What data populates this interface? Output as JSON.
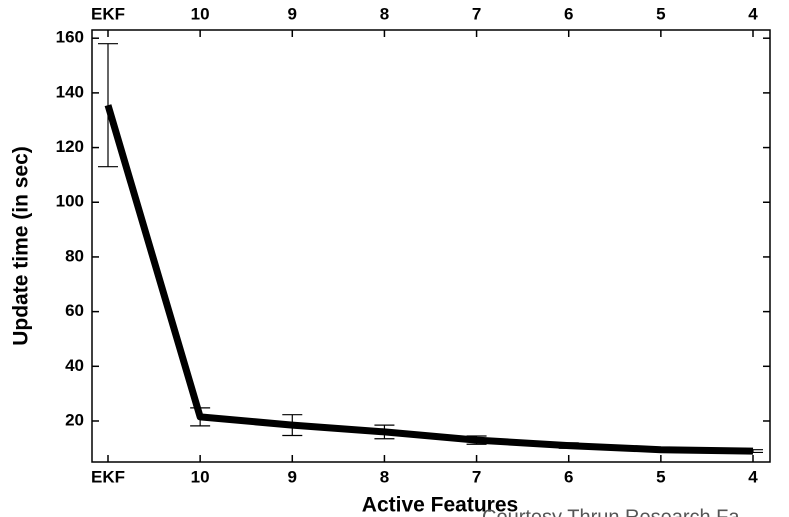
{
  "chart_data": {
    "type": "line",
    "xlabel": "Active Features",
    "ylabel": "Update time (in sec)",
    "annotation": "Courtesy Thrun Research Fa",
    "categories": [
      "EKF",
      "10",
      "9",
      "8",
      "7",
      "6",
      "5",
      "4"
    ],
    "values": [
      135.5,
      21.5,
      18.5,
      16,
      13,
      11,
      9.5,
      9
    ],
    "errors": [
      22.5,
      3.3,
      3.8,
      2.5,
      1.5,
      1,
      0.5,
      0.5
    ],
    "color": "#000000",
    "ylim": [
      5,
      163
    ],
    "yticks": [
      20,
      40,
      60,
      80,
      100,
      120,
      140,
      160
    ]
  }
}
